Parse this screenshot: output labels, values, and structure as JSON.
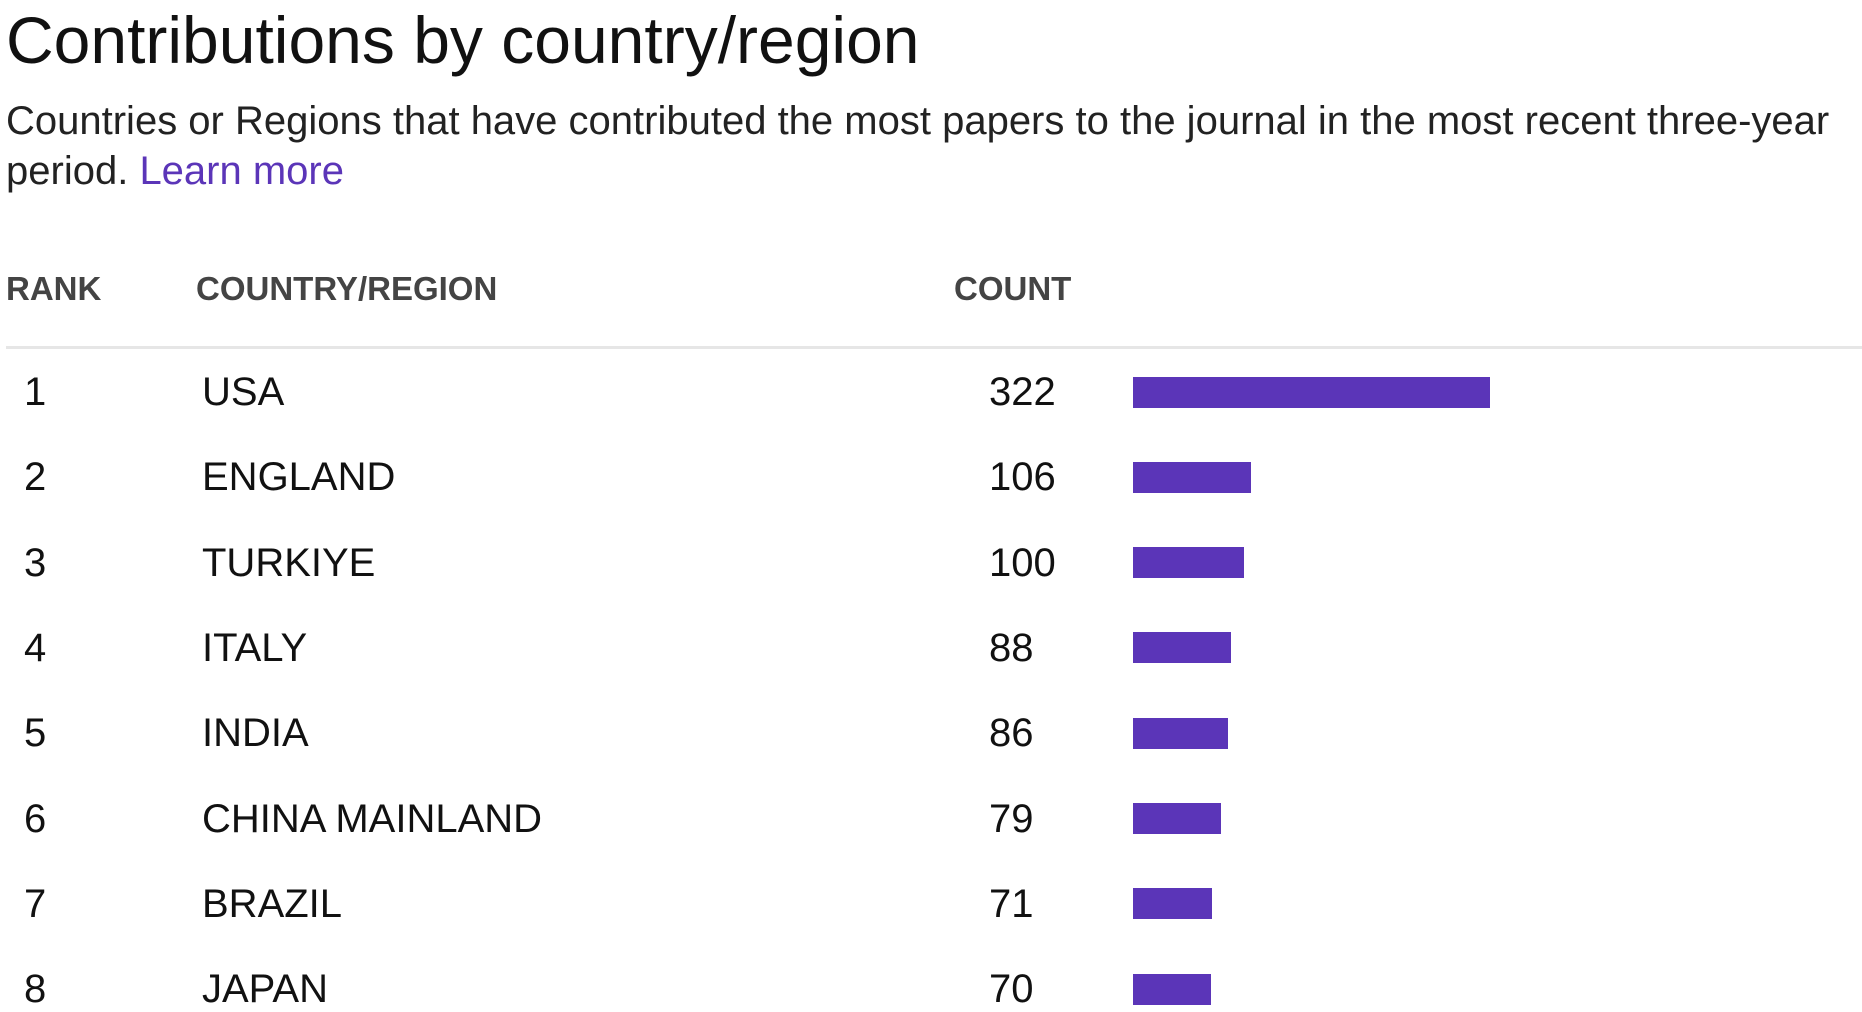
{
  "header": {
    "title": "Contributions by country/region",
    "subtitle": "Countries or Regions that have contributed the most papers to the journal in the most recent three-year period.",
    "link": "Learn more"
  },
  "table": {
    "columns": [
      "RANK",
      "COUNTRY/REGION",
      "COUNT"
    ],
    "rows": [
      [
        1,
        "USA",
        322
      ],
      [
        2,
        "ENGLAND",
        106
      ],
      [
        3,
        "TURKIYE",
        100
      ],
      [
        4,
        "ITALY",
        88
      ],
      [
        5,
        "INDIA",
        86
      ],
      [
        6,
        "CHINA MAINLAND",
        79
      ],
      [
        7,
        "BRAZIL",
        71
      ],
      [
        8,
        "JAPAN",
        70
      ]
    ]
  }
}
